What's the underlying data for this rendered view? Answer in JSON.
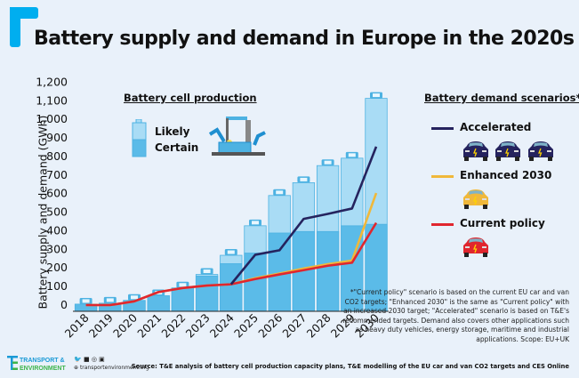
{
  "title": "Battery supply and demand in Europe in the 2020s",
  "colors": {
    "accent": "#00aeef",
    "likely": "#a9dcf5",
    "certain": "#5bbbe8",
    "cap": "#4db2e2",
    "accelerated": "#25235e",
    "enhanced": "#f0b83a",
    "current": "#e0262e",
    "background": "#e9f1fa"
  },
  "production_legend": {
    "title": "Battery cell production",
    "likely": "Likely",
    "certain": "Certain"
  },
  "demand_legend": {
    "title": "Battery demand scenarios*",
    "accelerated": "Accelerated",
    "enhanced": "Enhanced 2030",
    "current": "Current policy"
  },
  "note": "*\"Current policy\" scenario is based on the current EU car and van CO2 targets; \"Enhanced 2030\" is the same as \"Current policy\" with an increased 2030 target; \"Accelerated\" scenario is based on T&E's recommended targets. Demand also covers other applications such as heavy duty vehicles, energy storage, maritime and industrial applications. Scope: EU+UK",
  "source": "Source: T&E analysis of battery cell production capacity plans, T&E modelling of the EU car and van CO2 targets and CES Online",
  "footer": {
    "logo_line1": "TRANSPORT &",
    "logo_line2": "ENVIRONMENT",
    "social_icons": [
      "twitter-icon",
      "facebook-icon",
      "instagram-icon",
      "linkedin-icon"
    ],
    "url": "transportenvironment.org"
  },
  "chart_data": {
    "type": "bar",
    "title": "Battery supply and demand in Europe in the 2020s",
    "xlabel": "",
    "ylabel": "Battery supply and demand (GWh)",
    "ylim": [
      0,
      1200
    ],
    "yticks": [
      "0",
      "100",
      "200",
      "300",
      "400",
      "500",
      "600",
      "700",
      "800",
      "900",
      "1,000",
      "1,100",
      "1,200"
    ],
    "categories": [
      "2018",
      "2019",
      "2020",
      "2021",
      "2022",
      "2023",
      "2024",
      "2025",
      "2026",
      "2027",
      "2028",
      "2029",
      "2030"
    ],
    "bar_series": [
      {
        "name": "Certain",
        "values": [
          5,
          10,
          25,
          50,
          92,
          156,
          223,
          280,
          388,
          396,
          396,
          427,
          435
        ]
      },
      {
        "name": "Likely",
        "values": [
          5,
          10,
          25,
          50,
          92,
          165,
          268,
          427,
          590,
          659,
          751,
          791,
          1113
        ]
      }
    ],
    "line_series": [
      {
        "name": "Accelerated",
        "values": [
          null,
          null,
          null,
          null,
          null,
          null,
          112,
          271,
          295,
          464,
          491,
          520,
          853
        ]
      },
      {
        "name": "Enhanced 2030",
        "values": [
          0,
          0,
          20,
          70,
          92,
          105,
          112,
          145,
          170,
          197,
          220,
          240,
          603
        ]
      },
      {
        "name": "Current policy",
        "values": [
          0,
          0,
          20,
          70,
          92,
          105,
          112,
          140,
          165,
          188,
          212,
          228,
          443
        ]
      }
    ],
    "grid": false,
    "legend": "right"
  }
}
